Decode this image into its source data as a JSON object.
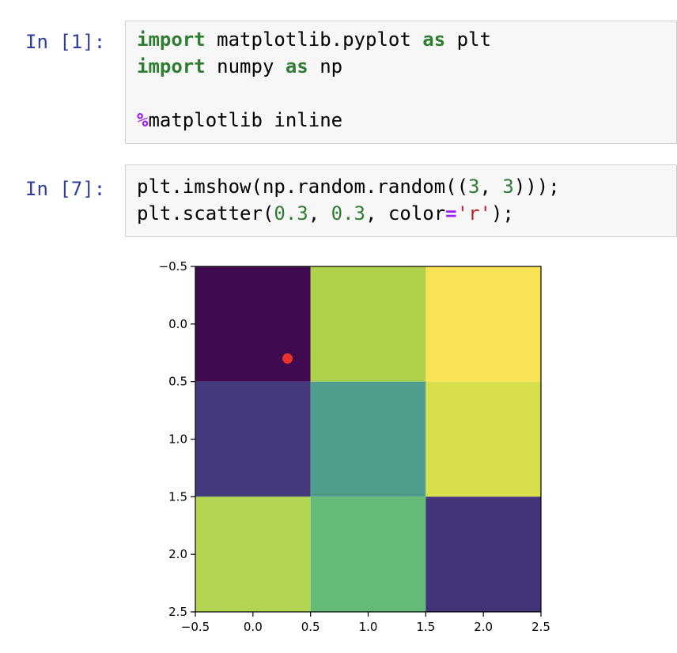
{
  "cells": [
    {
      "prompt": "In [1]:",
      "lines": [
        [
          {
            "t": "kw",
            "v": "import"
          },
          {
            "t": "p",
            "v": " matplotlib.pyplot "
          },
          {
            "t": "kw",
            "v": "as"
          },
          {
            "t": "p",
            "v": " plt"
          }
        ],
        [
          {
            "t": "kw",
            "v": "import"
          },
          {
            "t": "p",
            "v": " numpy "
          },
          {
            "t": "kw",
            "v": "as"
          },
          {
            "t": "p",
            "v": " np"
          }
        ],
        [],
        [
          {
            "t": "magic",
            "v": "%"
          },
          {
            "t": "p",
            "v": "matplotlib inline"
          }
        ]
      ]
    },
    {
      "prompt": "In [7]:",
      "lines": [
        [
          {
            "t": "p",
            "v": "plt.imshow(np.random.random(("
          },
          {
            "t": "num",
            "v": "3"
          },
          {
            "t": "p",
            "v": ", "
          },
          {
            "t": "num",
            "v": "3"
          },
          {
            "t": "p",
            "v": ")));"
          }
        ],
        [
          {
            "t": "p",
            "v": "plt.scatter("
          },
          {
            "t": "num",
            "v": "0.3"
          },
          {
            "t": "p",
            "v": ", "
          },
          {
            "t": "num",
            "v": "0.3"
          },
          {
            "t": "p",
            "v": ", color"
          },
          {
            "t": "op",
            "v": "="
          },
          {
            "t": "str",
            "v": "'r'"
          },
          {
            "t": "p",
            "v": ");"
          }
        ]
      ]
    }
  ],
  "chart_data": {
    "type": "heatmap",
    "grid": [
      [
        "#3f0a4f",
        "#aed04a",
        "#f9e355"
      ],
      [
        "#453a7d",
        "#4f9d8c",
        "#d8df4c"
      ],
      [
        "#b3d652",
        "#63bb77",
        "#433478"
      ]
    ],
    "extent": [
      -0.5,
      2.5,
      2.5,
      -0.5
    ],
    "xticks": [
      "−0.5",
      "0.0",
      "0.5",
      "1.0",
      "1.5",
      "2.0",
      "2.5"
    ],
    "yticks": [
      "−0.5",
      "0.0",
      "0.5",
      "1.0",
      "1.5",
      "2.0",
      "2.5"
    ],
    "tick_values": [
      -0.5,
      0.0,
      0.5,
      1.0,
      1.5,
      2.0,
      2.5
    ],
    "scatter": [
      {
        "x": 0.3,
        "y": 0.3,
        "color": "#e8322a"
      }
    ]
  }
}
